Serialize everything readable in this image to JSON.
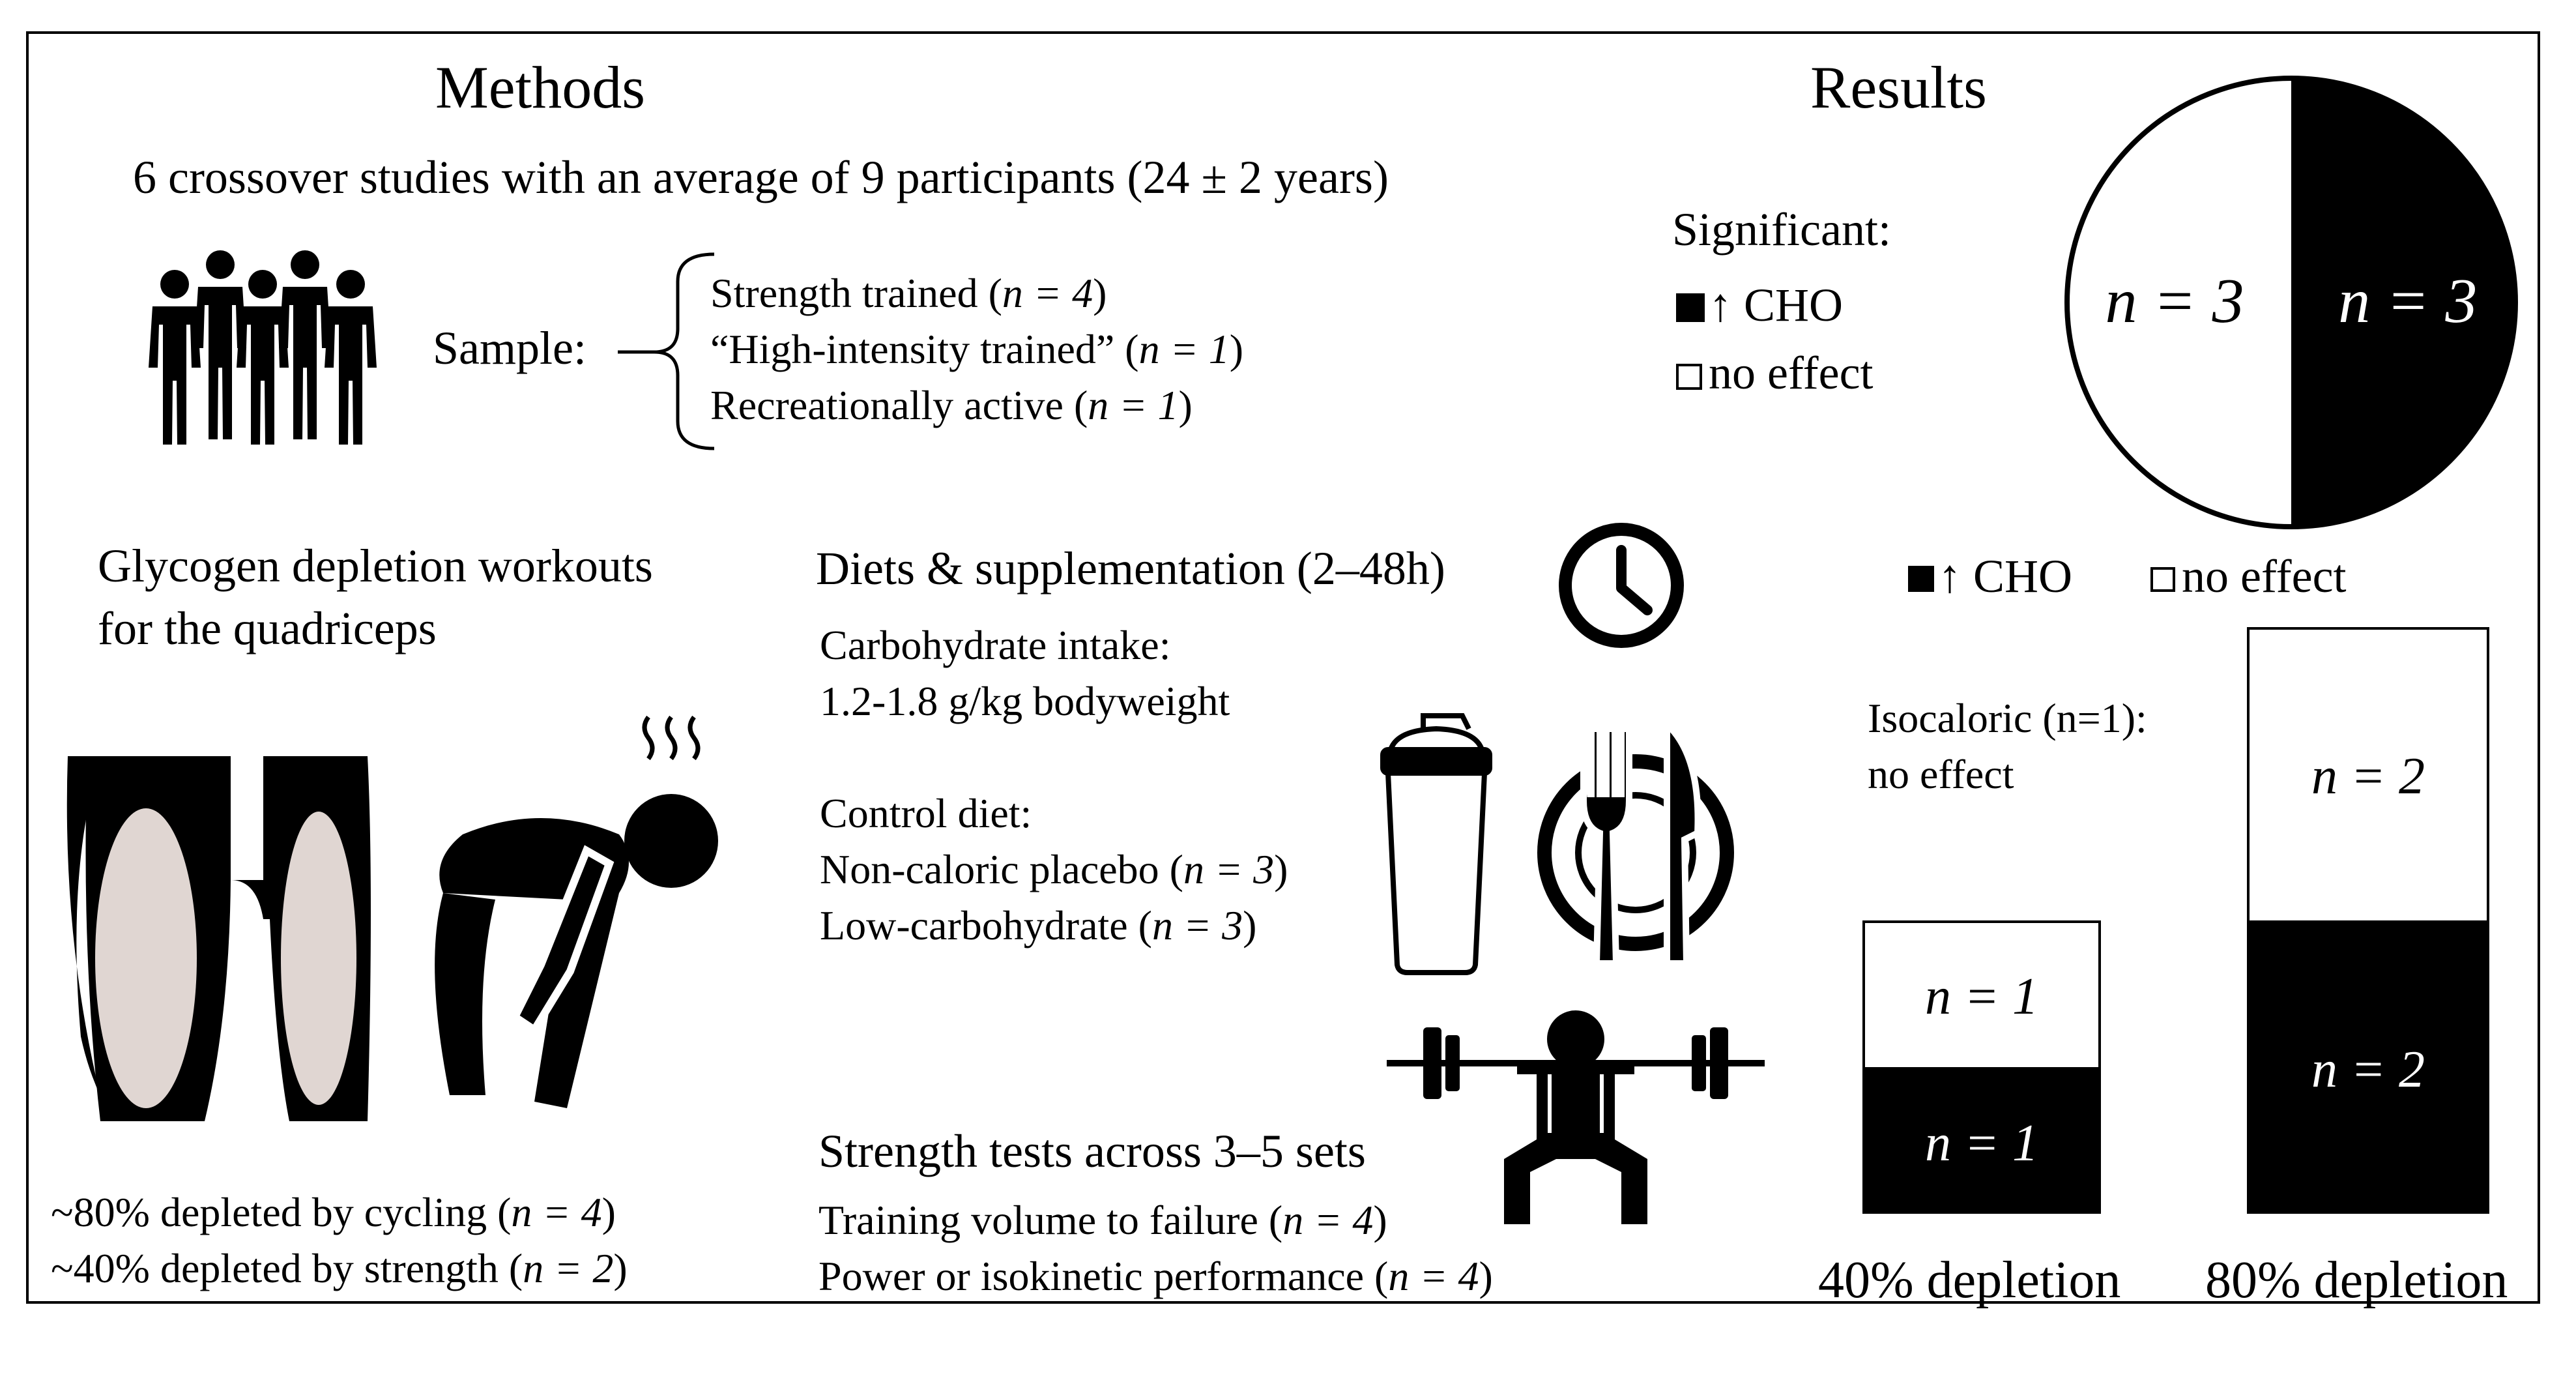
{
  "methods": {
    "title": "Methods",
    "summary": "6 crossover studies with an average of 9 participants (24 ± 2 years)",
    "sample": {
      "label": "Sample:",
      "groups": [
        {
          "name": "Strength trained",
          "n": "n = 4"
        },
        {
          "name": "“High-intensity trained”",
          "n": "n = 1"
        },
        {
          "name": "Recreationally active",
          "n": "n = 1"
        }
      ]
    },
    "glycogen": {
      "title_line1": "Glycogen depletion workouts",
      "title_line2": "for the quadriceps",
      "items": [
        {
          "text": "~80% depleted by cycling",
          "n": "n = 4"
        },
        {
          "text": "~40% depleted by strength",
          "n": "n = 2"
        }
      ]
    },
    "diets": {
      "title": "Diets & supplementation (2–48h)",
      "carb_label": "Carbohydrate intake:",
      "carb_value": "1.2-1.8 g/kg bodyweight",
      "control_label": "Control diet:",
      "controls": [
        {
          "text": "Non-caloric placebo",
          "n": "n = 3"
        },
        {
          "text": "Low-carbohydrate",
          "n": "n = 3"
        }
      ]
    },
    "strength": {
      "title": "Strength tests across 3–5 sets",
      "items": [
        {
          "text": "Training volume to failure",
          "n": "n = 4"
        },
        {
          "text": "Power or isokinetic performance",
          "n": "n = 4"
        }
      ]
    }
  },
  "results": {
    "title": "Results",
    "significant_label": "Significant:",
    "legend_cho": "↑ CHO",
    "legend_none": "no effect",
    "isocaloric_line1": "Isocaloric (n=1):",
    "isocaloric_line2": "no effect",
    "pie": {
      "no_effect_label": "n = 3",
      "cho_label": "n = 3"
    },
    "colors": {
      "cho": "#000000",
      "no_effect": "#ffffff"
    }
  },
  "chart_data": [
    {
      "type": "pie",
      "title": "Significant",
      "labels": [
        "no effect",
        "↑ CHO"
      ],
      "values": [
        3,
        3
      ]
    },
    {
      "type": "bar",
      "stacked": true,
      "categories": [
        "40% depletion",
        "80% depletion"
      ],
      "series": [
        {
          "name": "↑ CHO",
          "values": [
            1,
            2
          ]
        },
        {
          "name": "no effect",
          "values": [
            1,
            2
          ]
        }
      ],
      "labels": {
        "40_cho": "n = 1",
        "40_none": "n = 1",
        "80_cho": "n = 2",
        "80_none": "n = 2"
      },
      "ylim": [
        0,
        4
      ]
    }
  ]
}
